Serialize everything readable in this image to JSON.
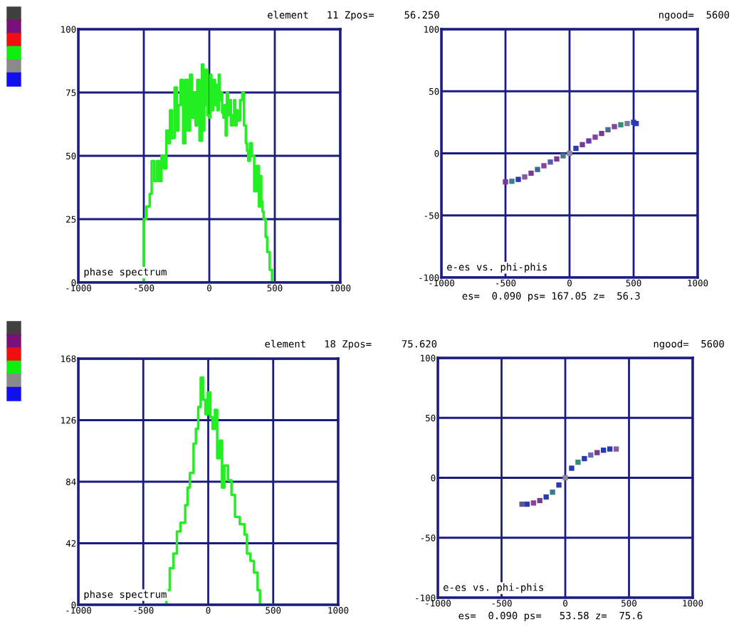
{
  "chart_data": [
    {
      "type": "step",
      "annotations": [
        "phase spectrum"
      ],
      "xlim": [
        -1000,
        1000
      ],
      "xticks": [
        -1000,
        -500,
        0,
        500,
        1000
      ],
      "ylim": [
        0,
        100
      ],
      "yticks": [
        0,
        25,
        50,
        75,
        100
      ],
      "grid": true,
      "series": [
        {
          "color": "#22ee22",
          "x": [
            -1000,
            -500,
            -480,
            -455,
            -440,
            -420,
            -400,
            -383,
            -365,
            -346,
            -328,
            -315,
            -300,
            -285,
            -265,
            -247,
            -235,
            -219,
            -200,
            -183,
            -165,
            -147,
            -133,
            -120,
            -105,
            -92,
            -75,
            -56,
            -47,
            -38,
            -29,
            -15,
            -2,
            8,
            16,
            30,
            43,
            52,
            62,
            72,
            80,
            90,
            98,
            108,
            116,
            125,
            134,
            143,
            152,
            165,
            180,
            190,
            198,
            208,
            216,
            235,
            252,
            265,
            279,
            288,
            297,
            310,
            325,
            343,
            361,
            379,
            388,
            397,
            406,
            415,
            430,
            442,
            461,
            479,
            497,
            506,
            1000
          ],
          "values": [
            0,
            25,
            30,
            35,
            48,
            40,
            48,
            40,
            50,
            45,
            60,
            55,
            68,
            57,
            77,
            60,
            70,
            80,
            55,
            80,
            60,
            82,
            65,
            75,
            62,
            80,
            56,
            86,
            60,
            70,
            84,
            66,
            65,
            82,
            68,
            80,
            70,
            78,
            68,
            82,
            72,
            75,
            67,
            65,
            70,
            58,
            75,
            66,
            72,
            62,
            66,
            72,
            62,
            68,
            64,
            72,
            75,
            62,
            55,
            52,
            48,
            55,
            50,
            36,
            46,
            30,
            42,
            32,
            28,
            25,
            18,
            12,
            5,
            0,
            0,
            0,
            0
          ]
        }
      ]
    },
    {
      "type": "scatter",
      "title": "element   11 Zpos=     56.250",
      "subtitle": "ngood=  5600",
      "annotations": [
        "e-es vs. phi-phis",
        "es=  0.090 ps= 167.05 z=  56.3"
      ],
      "xlim": [
        -1000,
        1000
      ],
      "xticks": [
        -1000,
        -500,
        0,
        500,
        1000
      ],
      "ylim": [
        -100,
        100
      ],
      "yticks": [
        -100,
        -50,
        0,
        50,
        100
      ],
      "grid": true,
      "marker": "square",
      "series": [
        {
          "x": [
            -500,
            -450,
            -400,
            -350,
            -300,
            -250,
            -200,
            -150,
            -100,
            -50,
            0,
            50,
            100,
            150,
            200,
            250,
            300,
            350,
            400,
            450,
            500,
            520
          ],
          "values": [
            -23,
            -22.5,
            -21,
            -19,
            -16,
            -13,
            -10,
            -7,
            -4.5,
            -2,
            0,
            4,
            7,
            10,
            13,
            16,
            19,
            21.5,
            23,
            24,
            25,
            24
          ],
          "colors": [
            "#7a3a90",
            "#3a7a9a",
            "#2a3ab0",
            "#8a5a9a",
            "#7a3a90",
            "#3a6a9a",
            "#8a40a0",
            "#5a5ab0",
            "#7a3a90",
            "#4a7a8a",
            "#8a8a9a",
            "#2a3ab0",
            "#7a3a90",
            "#6a3ab0",
            "#8a40a0",
            "#7a3a90",
            "#4a6a9a",
            "#8a40a0",
            "#3a8a7a",
            "#7a7a9a",
            "#2a3ab0",
            "#2a3ab0"
          ]
        }
      ]
    },
    {
      "type": "step",
      "annotations": [
        "phase spectrum"
      ],
      "xlim": [
        -1000,
        1000
      ],
      "xticks": [
        -1000,
        -500,
        0,
        500,
        1000
      ],
      "ylim": [
        0,
        168
      ],
      "yticks": [
        0,
        42,
        84,
        126,
        168
      ],
      "grid": true,
      "series": [
        {
          "color": "#22ee22",
          "x": [
            -1000,
            -342,
            -323,
            -296,
            -268,
            -241,
            -214,
            -177,
            -159,
            -141,
            -113,
            -95,
            -77,
            -58,
            -40,
            -22,
            -4,
            15,
            33,
            51,
            69,
            88,
            106,
            124,
            152,
            179,
            206,
            243,
            279,
            298,
            325,
            352,
            380,
            398,
            1000
          ],
          "values": [
            0,
            0,
            10,
            25,
            35,
            50,
            56,
            68,
            80,
            90,
            110,
            120,
            135,
            155,
            140,
            130,
            145,
            128,
            120,
            133,
            100,
            112,
            80,
            95,
            85,
            75,
            60,
            55,
            48,
            35,
            30,
            22,
            10,
            0,
            0
          ]
        }
      ]
    },
    {
      "type": "scatter",
      "title": "element   18 Zpos=     75.620",
      "subtitle": "ngood=  5600",
      "annotations": [
        "e-es vs. phi-phis",
        "es=  0.090 ps=   53.58 z=  75.6"
      ],
      "xlim": [
        -1000,
        1000
      ],
      "xticks": [
        -1000,
        -500,
        0,
        500,
        1000
      ],
      "ylim": [
        -100,
        100
      ],
      "yticks": [
        -100,
        -50,
        0,
        50,
        100
      ],
      "grid": true,
      "marker": "square",
      "series": [
        {
          "x": [
            -340,
            -300,
            -250,
            -200,
            -150,
            -100,
            -50,
            0,
            50,
            100,
            150,
            200,
            250,
            300,
            350,
            400
          ],
          "values": [
            -22,
            -22,
            -21,
            -19,
            -16,
            -12,
            -6,
            0,
            8,
            13,
            16,
            19,
            21,
            23,
            24,
            24
          ],
          "colors": [
            "#5a5a8a",
            "#2a3ab0",
            "#8a40a0",
            "#7a3a90",
            "#2a3ab0",
            "#3a7a8a",
            "#2a3ab0",
            "#8a8a9a",
            "#2a3ab0",
            "#3a8a7a",
            "#2a3ab0",
            "#6a6ab0",
            "#7a3a90",
            "#2a3ab0",
            "#2a3ab0",
            "#8a5a9a"
          ]
        }
      ]
    }
  ]
}
